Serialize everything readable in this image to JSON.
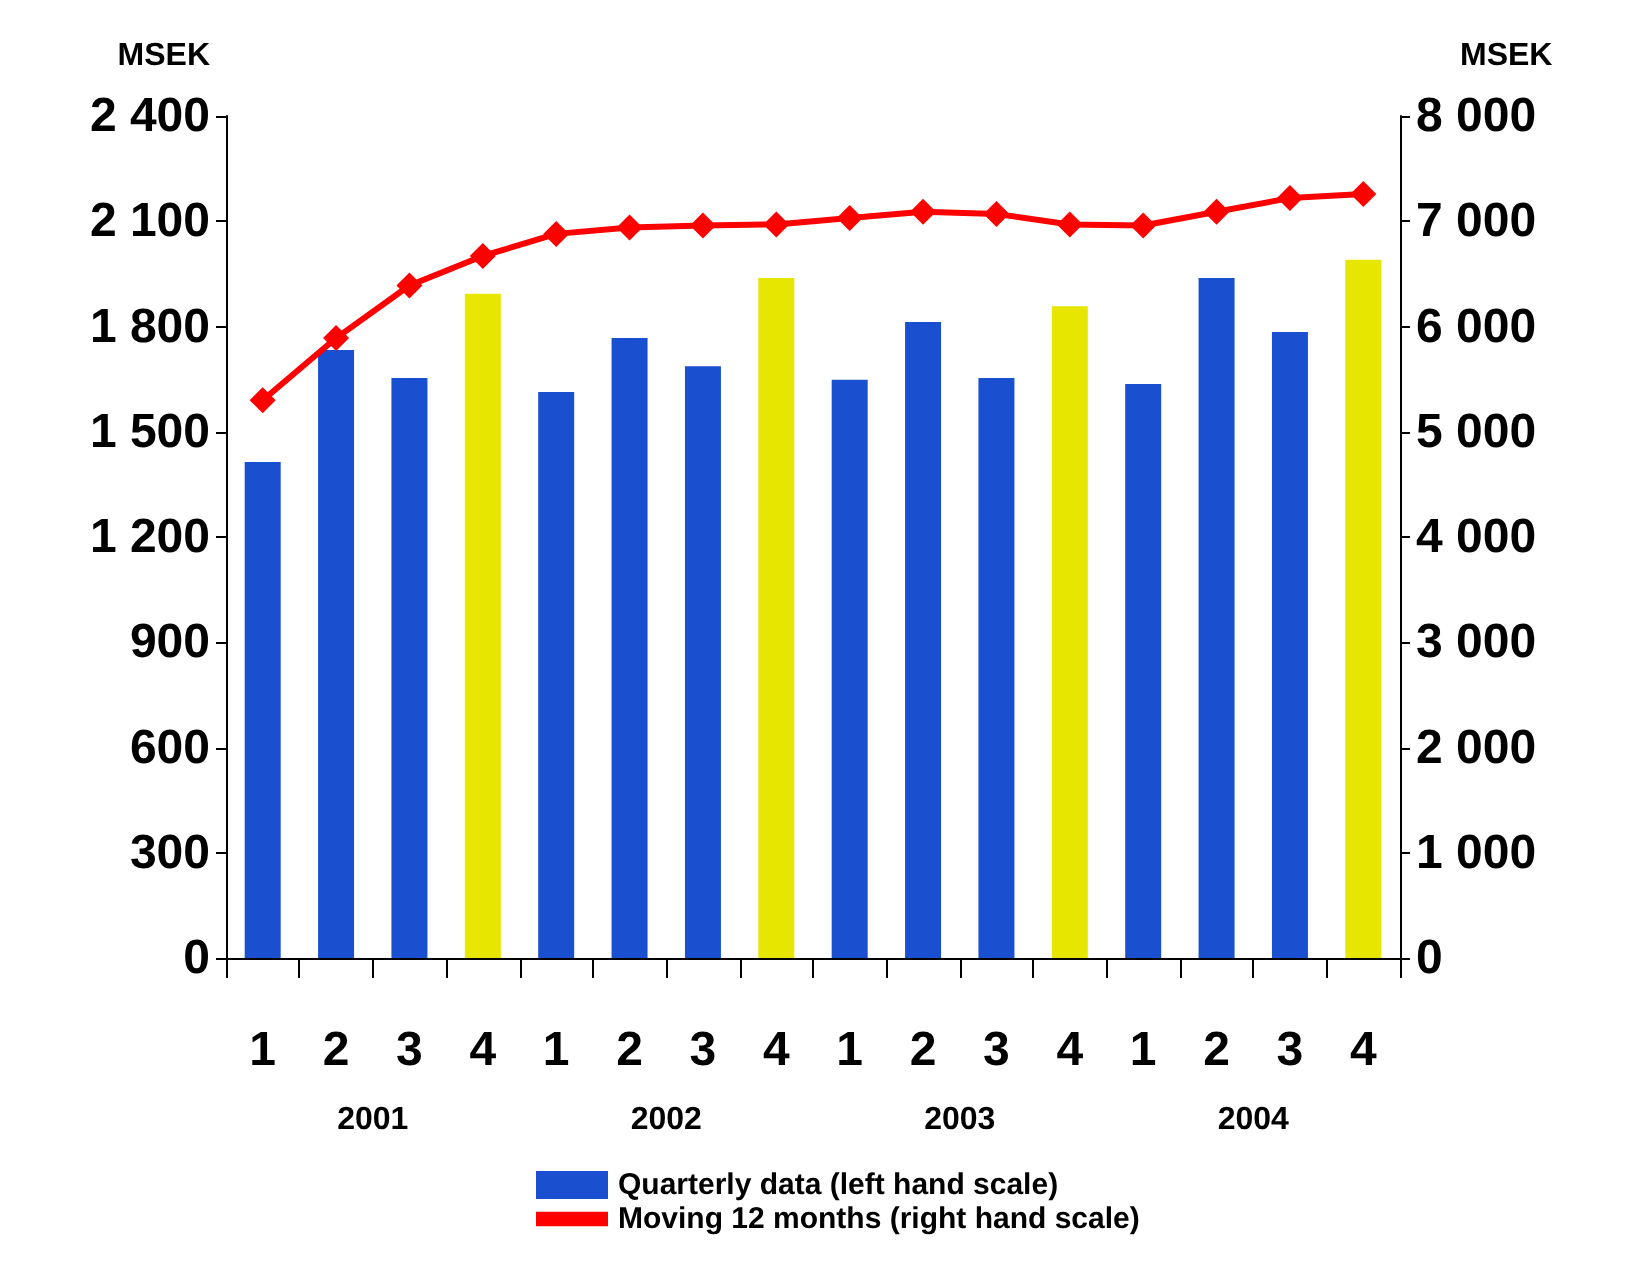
{
  "chart_data": {
    "type": "bar",
    "ylabel": "MSEK",
    "y2label": "MSEK",
    "categories": [
      "1",
      "2",
      "3",
      "4",
      "1",
      "2",
      "3",
      "4",
      "1",
      "2",
      "3",
      "4",
      "1",
      "2",
      "3",
      "4"
    ],
    "annotations": [
      "2001",
      "2002",
      "2003",
      "2004"
    ],
    "series": [
      {
        "name": "Quarterly data (left hand scale)",
        "color": "#1a4fd0",
        "colors": [
          "#1a4fd0",
          "#1a4fd0",
          "#1a4fd0",
          "#e6e600",
          "#1a4fd0",
          "#1a4fd0",
          "#1a4fd0",
          "#e6e600",
          "#1a4fd0",
          "#1a4fd0",
          "#1a4fd0",
          "#e6e600",
          "#1a4fd0",
          "#1a4fd0",
          "#1a4fd0",
          "#e6e600"
        ],
        "values": [
          1414,
          1733,
          1653,
          1893,
          1613,
          1767,
          1687,
          1938,
          1648,
          1813,
          1653,
          1858,
          1636,
          1938,
          1784,
          1990
        ]
      },
      {
        "name": "Moving 12 months (right hand scale)",
        "type": "line",
        "axis": "y2",
        "color": "#ff0000",
        "marker": "diamond",
        "values": [
          5300,
          5890,
          6390,
          6670,
          6880,
          6940,
          6960,
          6970,
          7030,
          7090,
          7070,
          6970,
          6960,
          7090,
          7220,
          7260
        ]
      }
    ],
    "ylim": [
      0,
      2400
    ],
    "yticks": [
      0,
      300,
      600,
      900,
      {
        "value": 1200,
        "label": "1 200"
      },
      {
        "value": 1500,
        "label": "1 500"
      },
      {
        "value": 1800,
        "label": "1 800"
      },
      {
        "value": 2100,
        "label": "2 100"
      },
      {
        "value": 2400,
        "label": "2 400"
      }
    ],
    "y2lim": [
      0,
      8000
    ],
    "y2ticks": [
      0,
      {
        "value": 1000,
        "label": "1 000"
      },
      {
        "value": 2000,
        "label": "2 000"
      },
      {
        "value": 3000,
        "label": "3 000"
      },
      {
        "value": 4000,
        "label": "4 000"
      },
      {
        "value": 5000,
        "label": "5 000"
      },
      {
        "value": 6000,
        "label": "6 000"
      },
      {
        "value": 7000,
        "label": "7 000"
      },
      {
        "value": 8000,
        "label": "8 000"
      }
    ],
    "grid": false,
    "legend": "bottom"
  }
}
